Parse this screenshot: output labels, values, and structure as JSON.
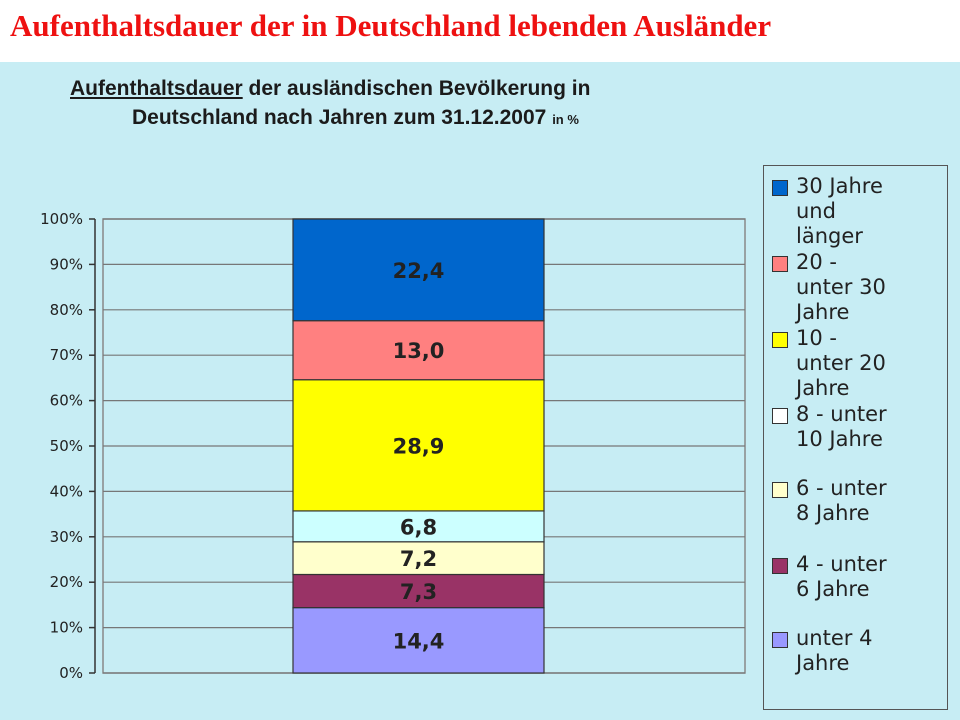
{
  "slide_title": "Aufenthaltsdauer der in Deutschland lebenden Ausländer",
  "chart_data": {
    "type": "bar",
    "stacked": true,
    "title_underlined": "Aufenthaltsdauer",
    "title_line1_rest": "der ausländischen Bevölkerung in",
    "title_line2": "Deutschland nach Jahren zum 31.12.2007",
    "title_unit": "in %",
    "ylim": [
      0,
      100
    ],
    "yticks": [
      "0%",
      "10%",
      "20%",
      "30%",
      "40%",
      "50%",
      "60%",
      "70%",
      "80%",
      "90%",
      "100%"
    ],
    "grid": true,
    "legend_position": "right",
    "series": [
      {
        "name": "unter 4 Jahre",
        "value": 14.4,
        "label": "14,4",
        "color": "#9999ff"
      },
      {
        "name": "4 - unter 6 Jahre",
        "value": 7.3,
        "label": "7,3",
        "color": "#993366"
      },
      {
        "name": "6 - unter 8 Jahre",
        "value": 7.2,
        "label": "7,2",
        "color": "#ffffcc"
      },
      {
        "name": "8 - unter 10 Jahre",
        "value": 6.8,
        "label": "6,8",
        "color": "#ccffff"
      },
      {
        "name": "10 - unter 20 Jahre",
        "value": 28.9,
        "label": "28,9",
        "color": "#ffff00"
      },
      {
        "name": "20 - unter 30 Jahre",
        "value": 13.0,
        "label": "13,0",
        "color": "#ff8080"
      },
      {
        "name": "30 Jahre und länger",
        "value": 22.4,
        "label": "22,4",
        "color": "#0066cc"
      }
    ]
  },
  "legend": [
    {
      "text": "30 Jahre\nund\nlänger",
      "color": "#0066cc"
    },
    {
      "text": "20 -\nunter 30\nJahre",
      "color": "#ff8080"
    },
    {
      "text": "10 -\nunter 20\nJahre",
      "color": "#ffff00"
    },
    {
      "text": "8 - unter\n10 Jahre",
      "color": "#ffffff"
    },
    {
      "text": "6 - unter\n8 Jahre",
      "color": "#ffffcc"
    },
    {
      "text": "4 - unter\n6 Jahre",
      "color": "#993366"
    },
    {
      "text": "unter 4\nJahre",
      "color": "#9999ff"
    }
  ]
}
